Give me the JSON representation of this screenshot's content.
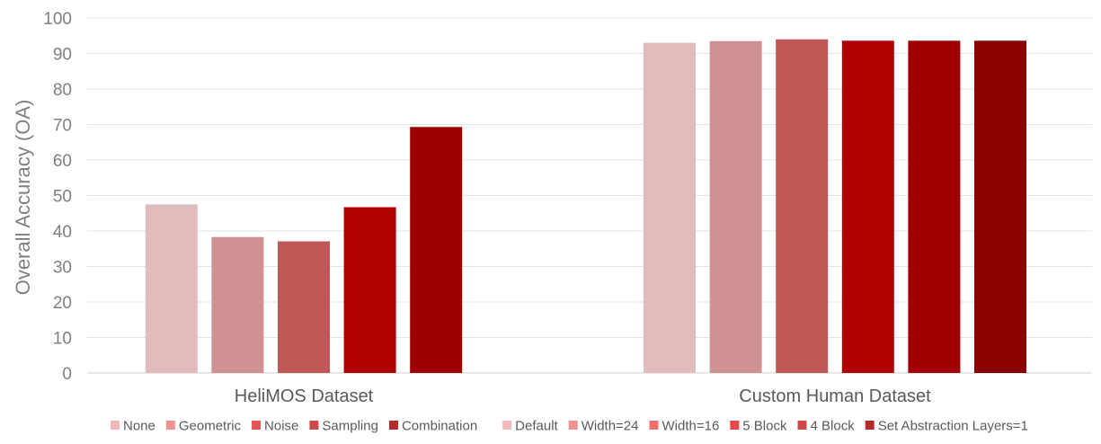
{
  "chart_data": {
    "type": "bar",
    "title": "",
    "xlabel": "",
    "ylabel": "Overall Accuracy (OA)",
    "ylim": [
      0,
      100
    ],
    "yticks": [
      0,
      10,
      20,
      30,
      40,
      50,
      60,
      70,
      80,
      90,
      100
    ],
    "grid": true,
    "legend_position": "bottom",
    "groups": [
      {
        "label": "HeliMOS Dataset",
        "bars": [
          {
            "name": "None",
            "value": 47.5,
            "color": "#e0bcbc",
            "legend_color": "#f2b8b8"
          },
          {
            "name": "Geometric",
            "value": 38.3,
            "color": "#cf9191",
            "legend_color": "#ee9292"
          },
          {
            "name": "Noise",
            "value": 37.1,
            "color": "#c05858",
            "legend_color": "#e65454"
          },
          {
            "name": "Sampling",
            "value": 46.7,
            "color": "#b00000",
            "legend_color": "#cc4a4a"
          },
          {
            "name": "Combination",
            "value": 69.3,
            "color": "#9e0000",
            "legend_color": "#b22a2a"
          }
        ]
      },
      {
        "label": "Custom Human Dataset",
        "bars": [
          {
            "name": "Default",
            "value": 93.0,
            "color": "#e0bcbc",
            "legend_color": "#f2b8b8"
          },
          {
            "name": "Width=24",
            "value": 93.5,
            "color": "#cf9191",
            "legend_color": "#ee9292"
          },
          {
            "name": "Width=16",
            "value": 94.0,
            "color": "#c05858",
            "legend_color": "#ee7070"
          },
          {
            "name": "5 Block",
            "value": 93.6,
            "color": "#b00000",
            "legend_color": "#e64848"
          },
          {
            "name": "4 Block",
            "value": 93.6,
            "color": "#a00000",
            "legend_color": "#cc4a4a"
          },
          {
            "name": "Set Abstraction Layers=1",
            "value": 93.6,
            "color": "#8b0000",
            "legend_color": "#b22a2a"
          }
        ]
      }
    ]
  }
}
